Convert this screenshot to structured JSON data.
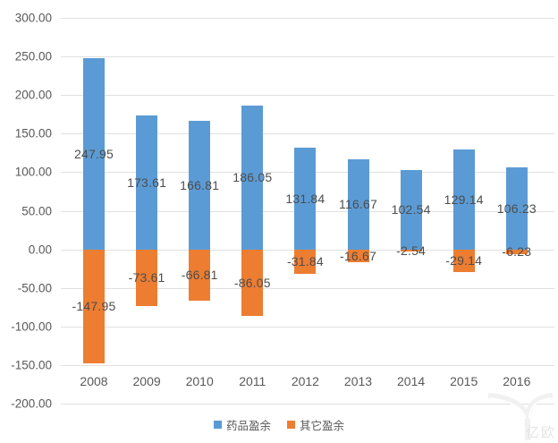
{
  "chart_data": {
    "type": "bar",
    "stacked": true,
    "title": "",
    "xlabel": "",
    "ylabel": "",
    "categories": [
      "2008",
      "2009",
      "2010",
      "2011",
      "2012",
      "2013",
      "2014",
      "2015",
      "2016"
    ],
    "series": [
      {
        "name": "药品盈余",
        "color": "#5B9BD5",
        "values": [
          247.95,
          173.61,
          166.81,
          186.05,
          131.84,
          116.67,
          102.54,
          129.14,
          106.23
        ],
        "labels": [
          "247.95",
          "173.61",
          "166.81",
          "186.05",
          "131.84",
          "116.67",
          "102.54",
          "129.14",
          "106.23"
        ]
      },
      {
        "name": "其它盈余",
        "color": "#ED7D31",
        "values": [
          -147.95,
          -73.61,
          -66.81,
          -86.05,
          -31.84,
          -16.67,
          -2.54,
          -29.14,
          -6.23
        ],
        "labels": [
          "-147.95",
          "-73.61",
          "-66.81",
          "-86.05",
          "-31.84",
          "-16.67",
          "-2.54",
          "-29.14",
          "-6.23"
        ]
      }
    ],
    "y_axis": {
      "min": -200,
      "max": 300,
      "step": 50,
      "tick_labels": [
        "300.00",
        "250.00",
        "200.00",
        "150.00",
        "100.00",
        "50.00",
        "0.00",
        "-50.00",
        "-100.00",
        "-150.00",
        "-200.00"
      ]
    },
    "grid": true,
    "legend_position": "bottom",
    "data_label_position": "center"
  },
  "legend": {
    "items": [
      {
        "label": "药品盈余",
        "color": "#5B9BD5"
      },
      {
        "label": "其它盈余",
        "color": "#ED7D31"
      }
    ]
  },
  "watermark": {
    "text": "亿欧"
  },
  "colors": {
    "background": "#ffffff",
    "gridline": "#e0e0e0",
    "axis_text": "#595959",
    "data_label_text": "#4d4d4d",
    "series_blue": "#5B9BD5",
    "series_orange": "#ED7D31"
  }
}
